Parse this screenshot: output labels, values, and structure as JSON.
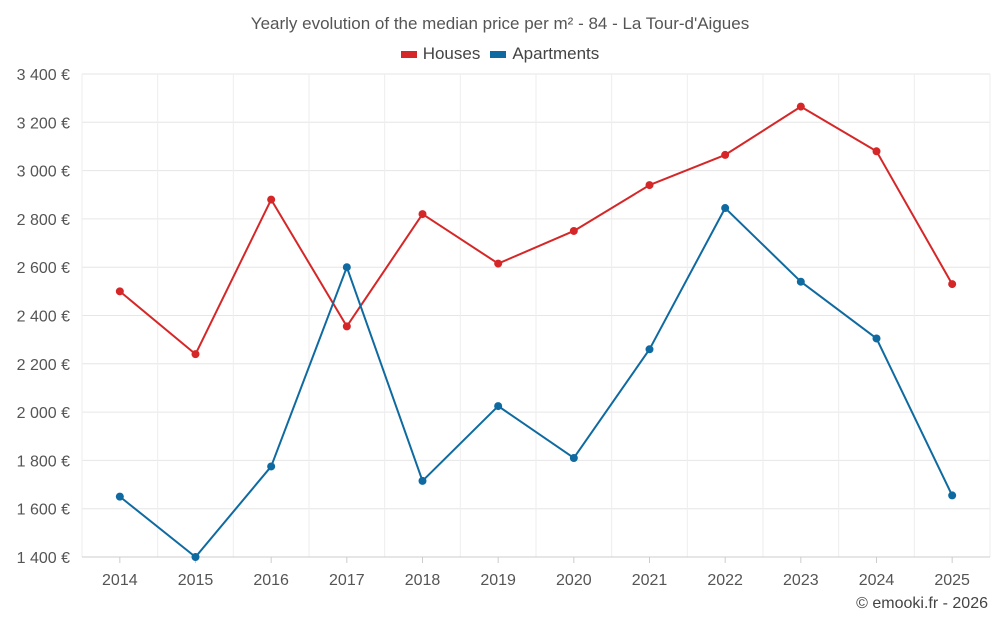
{
  "chart_data": {
    "type": "line",
    "title": "Yearly evolution of the median price per m² - 84 - La Tour-d'Aigues",
    "categories": [
      "2014",
      "2015",
      "2016",
      "2017",
      "2018",
      "2019",
      "2020",
      "2021",
      "2022",
      "2023",
      "2024",
      "2025"
    ],
    "series": [
      {
        "name": "Houses",
        "color": "#d62728",
        "values": [
          2500,
          2240,
          2880,
          2355,
          2820,
          2615,
          2750,
          2940,
          3065,
          3265,
          3080,
          2530
        ]
      },
      {
        "name": "Apartments",
        "color": "#0e6aa0",
        "values": [
          1650,
          1400,
          1775,
          2600,
          1715,
          2025,
          1810,
          2260,
          2845,
          2540,
          2305,
          1655
        ]
      }
    ],
    "ylim": [
      1400,
      3400
    ],
    "yticks": [
      1400,
      1600,
      1800,
      2000,
      2200,
      2400,
      2600,
      2800,
      3000,
      3200,
      3400
    ],
    "ytick_labels": [
      "1 400 €",
      "1 600 €",
      "1 800 €",
      "2 000 €",
      "2 200 €",
      "2 400 €",
      "2 600 €",
      "2 800 €",
      "3 000 €",
      "3 200 €",
      "3 400 €"
    ],
    "xlabel": "",
    "ylabel": "",
    "grid": true,
    "legend_position": "top-center"
  },
  "credit": "© emooki.fr - 2026"
}
